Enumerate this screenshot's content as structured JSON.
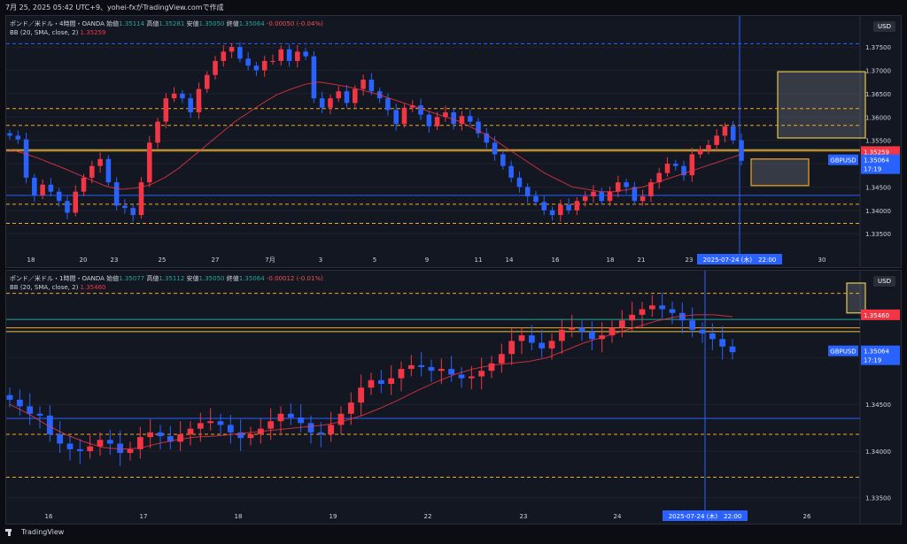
{
  "header": {
    "caption": "7月 25, 2025 05:42 UTC+9、yohei-fxがTradingView.comで作成"
  },
  "footer": {
    "brand": "TradingView"
  },
  "colors": {
    "up": "#26a69a",
    "down": "#ef5350",
    "candle_up_body": "#f23645",
    "candle_down_body": "#2962ff",
    "bb": "#f23645",
    "accent_blue": "#2962ff",
    "level_orange": "#f5a623",
    "level_yellow": "#e6c84f",
    "wave_green": "#4caf50"
  },
  "panes": [
    {
      "legend": {
        "symbol": "ポンド／米ドル・4時間・OANDA",
        "o_label": "始値",
        "o": "1.35114",
        "h_label": "高値",
        "h": "1.35281",
        "l_label": "安値",
        "l": "1.35050",
        "c_label": "終値",
        "c": "1.35064",
        "chg": "-0.00050 (-0.04%)",
        "bb_label": "BB (20, SMA, close, 2)",
        "bb_value": "1.35259"
      },
      "currency": "USD",
      "price_axis": [
        "1.37500",
        "1.37000",
        "1.36500",
        "1.36000",
        "1.35500",
        "1.35000",
        "1.34500",
        "1.34000",
        "1.33500"
      ],
      "price_tag": {
        "value": "1.35259",
        "symbol": "GBPUSD",
        "price": "1.35064",
        "countdown": "17:19"
      },
      "time_axis": [
        "18",
        "20",
        "23",
        "25",
        "27",
        "7月",
        "3",
        "5",
        "9",
        "11",
        "14",
        "16",
        "18",
        "21",
        "23",
        "30"
      ],
      "crosshair_label": "2025-07-24 (木)　22:00"
    },
    {
      "legend": {
        "symbol": "ポンド／米ドル・1時間・OANDA",
        "o_label": "始値",
        "o": "1.35077",
        "h_label": "高値",
        "h": "1.35112",
        "l_label": "安値",
        "l": "1.35050",
        "c_label": "終値",
        "c": "1.35064",
        "chg": "-0.00012 (-0.01%)",
        "bb_label": "BB (20, SMA, close, 2)",
        "bb_value": "1.35460"
      },
      "currency": "USD",
      "price_axis": [
        "1.35000",
        "1.34500",
        "1.34000",
        "1.33500"
      ],
      "price_tag": {
        "value": "1.35460",
        "symbol": "GBPUSD",
        "price": "1.35064",
        "countdown": "17:19"
      },
      "time_axis": [
        "16",
        "17",
        "18",
        "19",
        "22",
        "23",
        "24",
        "26"
      ],
      "crosshair_label": "2025-07-24 (木)　22:00"
    }
  ],
  "chart_data": [
    {
      "type": "candlestick",
      "title": "ポンド／米ドル・4時間・OANDA",
      "ylim": [
        1.332,
        1.379
      ],
      "series": [
        {
          "name": "GBPUSD",
          "close": [
            1.356,
            1.3552,
            1.347,
            1.3432,
            1.3455,
            1.344,
            1.342,
            1.3395,
            1.344,
            1.347,
            1.3495,
            1.351,
            1.346,
            1.341,
            1.3405,
            1.339,
            1.346,
            1.3545,
            1.359,
            1.364,
            1.365,
            1.364,
            1.361,
            1.366,
            1.369,
            1.372,
            1.374,
            1.375,
            1.3725,
            1.371,
            1.37,
            1.372,
            1.372,
            1.3745,
            1.372,
            1.374,
            1.373,
            1.364,
            1.362,
            1.364,
            1.3655,
            1.363,
            1.366,
            1.368,
            1.3655,
            1.364,
            1.3615,
            1.3585,
            1.362,
            1.3625,
            1.3605,
            1.358,
            1.36,
            1.361,
            1.3585,
            1.3602,
            1.359,
            1.3565,
            1.3545,
            1.352,
            1.3495,
            1.347,
            1.345,
            1.343,
            1.3418,
            1.34,
            1.339,
            1.3412,
            1.34,
            1.342,
            1.343,
            1.344,
            1.342,
            1.344,
            1.346,
            1.345,
            1.342,
            1.343,
            1.346,
            1.348,
            1.35,
            1.3495,
            1.3475,
            1.352,
            1.353,
            1.354,
            1.356,
            1.358,
            1.355,
            1.3506
          ]
        },
        {
          "name": "BB (20, SMA, close, 2)",
          "basis": [
            1.353,
            1.3522,
            1.3512,
            1.35,
            1.3488,
            1.3475,
            1.3462,
            1.345,
            1.3445,
            1.3448,
            1.3455,
            1.347,
            1.349,
            1.3515,
            1.354,
            1.3565,
            1.359,
            1.361,
            1.363,
            1.3648,
            1.366,
            1.367,
            1.3675,
            1.367,
            1.3665,
            1.3658,
            1.365,
            1.364,
            1.363,
            1.362,
            1.361,
            1.36,
            1.359,
            1.3575,
            1.356,
            1.354,
            1.352,
            1.35,
            1.348,
            1.3465,
            1.345,
            1.3445,
            1.344,
            1.344,
            1.3445,
            1.345,
            1.346,
            1.347,
            1.348,
            1.349,
            1.35,
            1.351,
            1.352
          ]
        }
      ],
      "levels": [
        1.3757,
        1.3618,
        1.3582,
        1.353,
        1.3527,
        1.3432,
        1.3413,
        1.3372
      ],
      "zones": [
        {
          "top": 1.3697,
          "bottom": 1.3555
        },
        {
          "top": 1.351,
          "bottom": 1.3453
        }
      ]
    },
    {
      "type": "candlestick",
      "title": "ポンド／米ドル・1時間・OANDA",
      "ylim": [
        1.3345,
        1.358
      ],
      "series": [
        {
          "name": "GBPUSD",
          "close": [
            1.3455,
            1.3448,
            1.344,
            1.3438,
            1.3418,
            1.3408,
            1.3402,
            1.34,
            1.3405,
            1.3412,
            1.3408,
            1.3398,
            1.3402,
            1.3415,
            1.342,
            1.3416,
            1.341,
            1.3418,
            1.3424,
            1.343,
            1.3432,
            1.3428,
            1.342,
            1.3414,
            1.3418,
            1.3424,
            1.3432,
            1.344,
            1.3436,
            1.343,
            1.342,
            1.3418,
            1.3428,
            1.344,
            1.3452,
            1.3468,
            1.3476,
            1.3472,
            1.3478,
            1.3488,
            1.3492,
            1.349,
            1.3486,
            1.3488,
            1.3482,
            1.3478,
            1.348,
            1.3486,
            1.3494,
            1.3504,
            1.3518,
            1.3524,
            1.3516,
            1.351,
            1.3518,
            1.353,
            1.3532,
            1.3528,
            1.352,
            1.3524,
            1.3532,
            1.354,
            1.3546,
            1.3552,
            1.3556,
            1.3552,
            1.3548,
            1.354,
            1.353,
            1.3526,
            1.352,
            1.3512,
            1.3506
          ]
        },
        {
          "name": "BB (20, SMA, close, 2)",
          "basis": [
            1.345,
            1.344,
            1.3428,
            1.3418,
            1.341,
            1.3404,
            1.3402,
            1.3403,
            1.3408,
            1.3412,
            1.3415,
            1.3416,
            1.3418,
            1.342,
            1.3422,
            1.3424,
            1.3426,
            1.3428,
            1.3432,
            1.3438,
            1.3446,
            1.3455,
            1.3465,
            1.3474,
            1.3482,
            1.3488,
            1.3492,
            1.3494,
            1.3496,
            1.35,
            1.3508,
            1.3516,
            1.3522,
            1.3528,
            1.3534,
            1.354,
            1.3544,
            1.3546,
            1.3546,
            1.3544
          ]
        }
      ],
      "levels": [
        1.3569,
        1.3541,
        1.3532,
        1.3528,
        1.3435,
        1.3418,
        1.3372
      ],
      "zones": [
        {
          "top": 1.358,
          "bottom": 1.3548
        }
      ]
    }
  ]
}
